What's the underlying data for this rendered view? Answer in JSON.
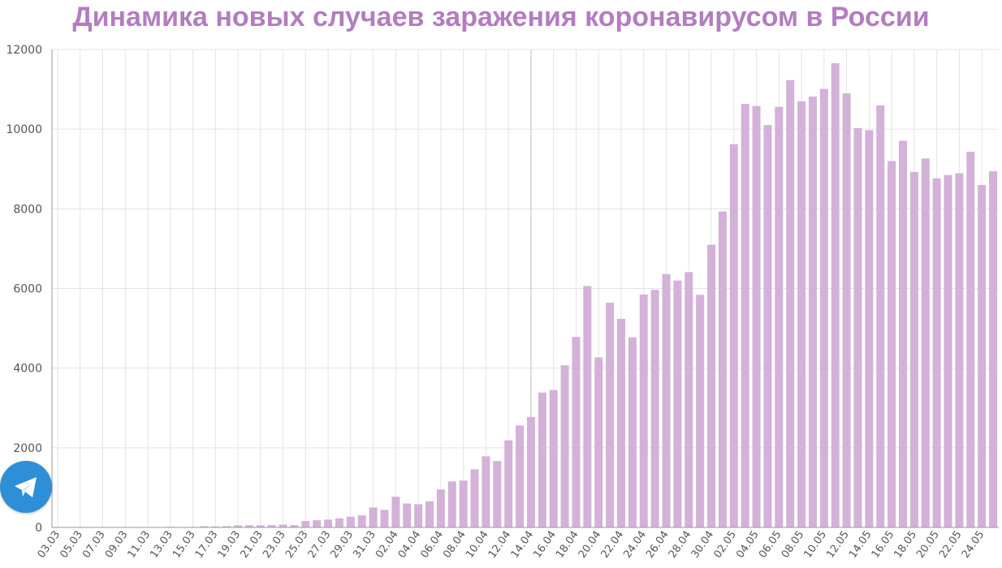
{
  "chart_data": {
    "type": "bar",
    "title": "Динамика новых случаев заражения коронавирусом в России",
    "xlabel": "",
    "ylabel": "",
    "ylim": [
      0,
      12000
    ],
    "yticks": [
      0,
      2000,
      4000,
      6000,
      8000,
      10000,
      12000
    ],
    "grid": true,
    "bar_color": "#d3b1d8",
    "title_color": "#b27dc0",
    "categories": [
      "03.03",
      "04.03",
      "05.03",
      "06.03",
      "07.03",
      "08.03",
      "09.03",
      "10.03",
      "11.03",
      "12.03",
      "13.03",
      "14.03",
      "15.03",
      "16.03",
      "17.03",
      "18.03",
      "19.03",
      "20.03",
      "21.03",
      "22.03",
      "23.03",
      "24.03",
      "25.03",
      "26.03",
      "27.03",
      "28.03",
      "29.03",
      "30.03",
      "31.03",
      "01.04",
      "02.04",
      "03.04",
      "04.04",
      "05.04",
      "06.04",
      "07.04",
      "08.04",
      "09.04",
      "10.04",
      "11.04",
      "12.04",
      "13.04",
      "14.04",
      "15.04",
      "16.04",
      "17.04",
      "18.04",
      "19.04",
      "20.04",
      "21.04",
      "22.04",
      "23.04",
      "24.04",
      "25.04",
      "26.04",
      "27.04",
      "28.04",
      "29.04",
      "30.04",
      "01.05",
      "02.05",
      "03.05",
      "04.05",
      "05.05",
      "06.05",
      "07.05",
      "08.05",
      "09.05",
      "10.05",
      "11.05",
      "12.05",
      "13.05",
      "14.05",
      "15.05",
      "16.05",
      "17.05",
      "18.05",
      "19.05",
      "20.05",
      "21.05",
      "22.05",
      "23.05",
      "24.05",
      "25.05"
    ],
    "values": [
      2,
      1,
      0,
      0,
      3,
      0,
      7,
      3,
      8,
      6,
      17,
      11,
      14,
      30,
      21,
      33,
      52,
      54,
      53,
      59,
      71,
      57,
      163,
      182,
      196,
      228,
      270,
      302,
      500,
      440,
      771,
      601,
      582,
      658,
      954,
      1154,
      1175,
      1459,
      1786,
      1667,
      2186,
      2558,
      2774,
      3388,
      3448,
      4070,
      4785,
      6060,
      4268,
      5642,
      5236,
      4774,
      5849,
      5966,
      6361,
      6198,
      6411,
      5841,
      7099,
      7933,
      9623,
      10633,
      10581,
      10102,
      10559,
      11231,
      10699,
      10817,
      11012,
      11656,
      10899,
      10028,
      9974,
      10598,
      9200,
      9709,
      8926,
      9263,
      8764,
      8849,
      8894,
      9434,
      8599,
      8946
    ]
  },
  "ui": {
    "share_icon": "telegram-paper-plane-icon",
    "share_color": "#2e8fd6"
  }
}
